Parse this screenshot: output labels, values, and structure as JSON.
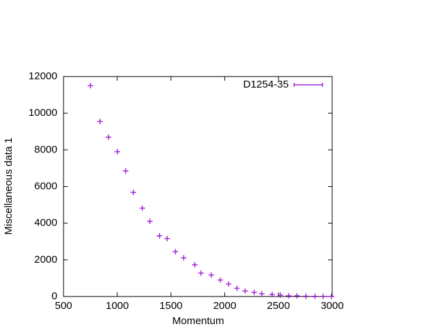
{
  "chart_data": {
    "type": "scatter",
    "x_label": "Momentum",
    "y_label": "Miscellaneous data 1",
    "series": [
      {
        "name": "D1254-35",
        "color": "#9400d3",
        "x": [
          750,
          840,
          918,
          1001,
          1078,
          1149,
          1233,
          1303,
          1393,
          1464,
          1541,
          1618,
          1721,
          1779,
          1875,
          1959,
          2036,
          2113,
          2190,
          2274,
          2345,
          2441,
          2518,
          2595,
          2672,
          2756,
          2839,
          2916,
          2993
        ],
        "values": [
          11500,
          9550,
          8690,
          7900,
          6850,
          5680,
          4820,
          4100,
          3310,
          3160,
          2450,
          2110,
          1730,
          1280,
          1170,
          900,
          680,
          450,
          300,
          225,
          150,
          113,
          75,
          38,
          38,
          20,
          15,
          10,
          5
        ]
      }
    ],
    "xlim": [
      500,
      3000
    ],
    "xticks": [
      500,
      1000,
      1500,
      2000,
      2500,
      3000
    ],
    "ylim": [
      0,
      12000
    ],
    "yticks": [
      0,
      2000,
      4000,
      6000,
      8000,
      10000,
      12000
    ],
    "legend": "top-right"
  }
}
